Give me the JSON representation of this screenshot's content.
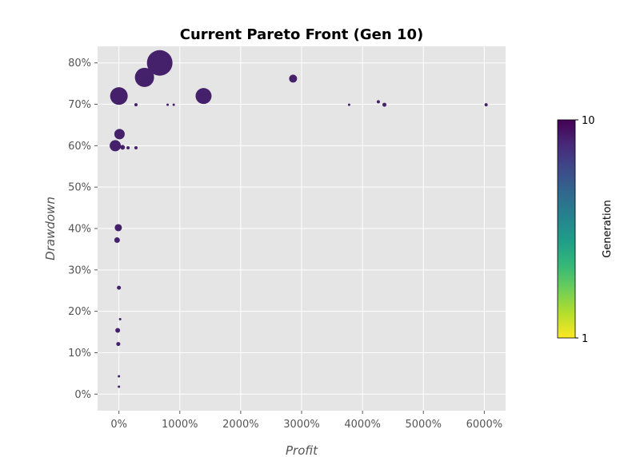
{
  "chart_data": {
    "type": "scatter",
    "title": "Current Pareto Front (Gen 10)",
    "xlabel": "Profit",
    "ylabel": "Drawdown",
    "xlim": [
      -350,
      6350
    ],
    "ylim": [
      -4,
      84
    ],
    "x_ticks": [
      0,
      1000,
      2000,
      3000,
      4000,
      5000,
      6000
    ],
    "x_tick_labels": [
      "0%",
      "1000%",
      "2000%",
      "3000%",
      "4000%",
      "5000%",
      "6000%"
    ],
    "y_ticks": [
      0,
      10,
      20,
      30,
      40,
      50,
      60,
      70,
      80
    ],
    "y_tick_labels": [
      "0%",
      "10%",
      "20%",
      "30%",
      "40%",
      "50%",
      "60%",
      "70%",
      "80%"
    ],
    "grid": true,
    "background": "#e5e5e5",
    "grid_color": "#ffffff",
    "point_color": "#46216b",
    "points": [
      {
        "x": 670,
        "y": 80.0,
        "size": 16
      },
      {
        "x": 420,
        "y": 76.5,
        "size": 12
      },
      {
        "x": 2860,
        "y": 76.2,
        "size": 5
      },
      {
        "x": 0,
        "y": 72.0,
        "size": 11
      },
      {
        "x": 1390,
        "y": 72.0,
        "size": 10
      },
      {
        "x": 4260,
        "y": 70.6,
        "size": 2
      },
      {
        "x": 280,
        "y": 69.9,
        "size": 2
      },
      {
        "x": 800,
        "y": 69.9,
        "size": 1.5
      },
      {
        "x": 900,
        "y": 69.9,
        "size": 1.5
      },
      {
        "x": 3780,
        "y": 69.9,
        "size": 1.5
      },
      {
        "x": 4360,
        "y": 69.9,
        "size": 2.5
      },
      {
        "x": 6030,
        "y": 69.9,
        "size": 2
      },
      {
        "x": 10,
        "y": 62.8,
        "size": 6.5
      },
      {
        "x": -60,
        "y": 60.0,
        "size": 7
      },
      {
        "x": 60,
        "y": 59.6,
        "size": 3
      },
      {
        "x": 150,
        "y": 59.5,
        "size": 2
      },
      {
        "x": 280,
        "y": 59.5,
        "size": 2
      },
      {
        "x": -10,
        "y": 40.2,
        "size": 4.5
      },
      {
        "x": -30,
        "y": 37.2,
        "size": 3.5
      },
      {
        "x": 0,
        "y": 25.7,
        "size": 2.5
      },
      {
        "x": 20,
        "y": 18.1,
        "size": 1.5
      },
      {
        "x": -20,
        "y": 15.4,
        "size": 3
      },
      {
        "x": -10,
        "y": 12.1,
        "size": 2.5
      },
      {
        "x": 0,
        "y": 4.3,
        "size": 1.5
      },
      {
        "x": 0,
        "y": 1.8,
        "size": 1.5
      }
    ],
    "colorbar": {
      "label": "Generation",
      "min": 1,
      "max": 10,
      "tick_labels": [
        "10",
        "1"
      ],
      "colormap": [
        "#fde725",
        "#b5de2b",
        "#6ece58",
        "#35b779",
        "#1f9e89",
        "#26828e",
        "#31688e",
        "#3e4989",
        "#482878",
        "#440154"
      ]
    }
  }
}
